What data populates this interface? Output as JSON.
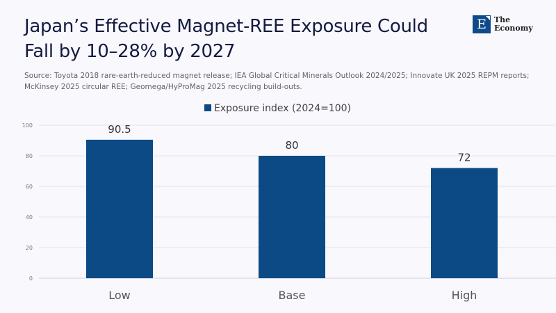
{
  "header": {
    "title": "Japan’s Effective Magnet-REE Exposure Could Fall by 10–28% by 2027",
    "source": "Source: Toyota 2018 rare-earth-reduced magnet release; IEA Global Critical Minerals Outlook 2024/2025; Innovate UK 2025 REPM reports; McKinsey 2025 circular REE; Geomega/HyProMag 2025 recycling build-outs."
  },
  "logo": {
    "mark": "E",
    "line1": "The",
    "line2": "Economy",
    "color": "#0e4a8a"
  },
  "chart_data": {
    "type": "bar",
    "title": "Japan’s Effective Magnet-REE Exposure Could Fall by 10–28% by 2027",
    "categories": [
      "Low",
      "Base",
      "High"
    ],
    "series": [
      {
        "name": "Exposure index (2024=100)",
        "values": [
          90.5,
          80,
          72
        ],
        "color": "#0b4a85"
      }
    ],
    "data_labels": [
      "90.5",
      "80",
      "72"
    ],
    "xlabel": "",
    "ylabel": "",
    "ylim": [
      0,
      100
    ],
    "yticks": [
      0,
      20,
      40,
      60,
      80,
      100
    ],
    "grid": true,
    "legend": {
      "position": "top-center",
      "entries": [
        "Exposure index (2024=100)"
      ]
    }
  }
}
